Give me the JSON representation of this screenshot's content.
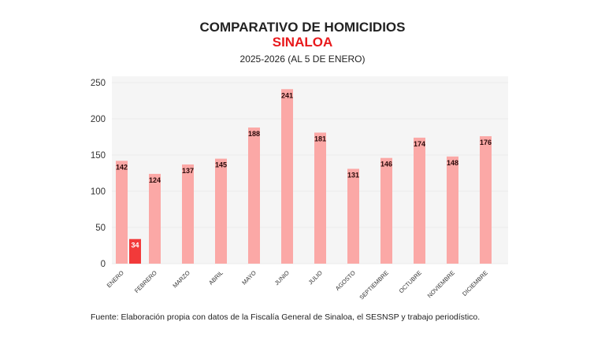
{
  "chart_data": {
    "type": "bar",
    "title": "COMPARATIVO DE HOMICIDIOS",
    "subtitle": "SINALOA",
    "subtitle2": "2025-2026 (AL 5 DE ENERO)",
    "categories": [
      "ENERO",
      "FEBRERO",
      "MARZO",
      "ABRIL",
      "MAYO",
      "JUNIO",
      "JULIO",
      "AGOSTO",
      "SEPTIEMBRE",
      "OCTUBRE",
      "NOVIEMBRE",
      "DICIEMBRE"
    ],
    "series": [
      {
        "values": [
          142,
          124,
          137,
          145,
          188,
          241,
          181,
          131,
          146,
          174,
          148,
          176
        ],
        "color": "#fba8a6"
      },
      {
        "values": [
          34,
          null,
          null,
          null,
          null,
          null,
          null,
          null,
          null,
          null,
          null,
          null
        ],
        "color": "#f23a3a"
      }
    ],
    "yticks": [
      "0",
      "50",
      "100",
      "150",
      "200",
      "250"
    ],
    "ylim": [
      0,
      258
    ],
    "grid": true,
    "plot_background": "#f5f5f5",
    "source": "Fuente: Elaboración propia con datos de la Fiscalía General de Sinaloa, el SESNSP y trabajo periodístico."
  }
}
